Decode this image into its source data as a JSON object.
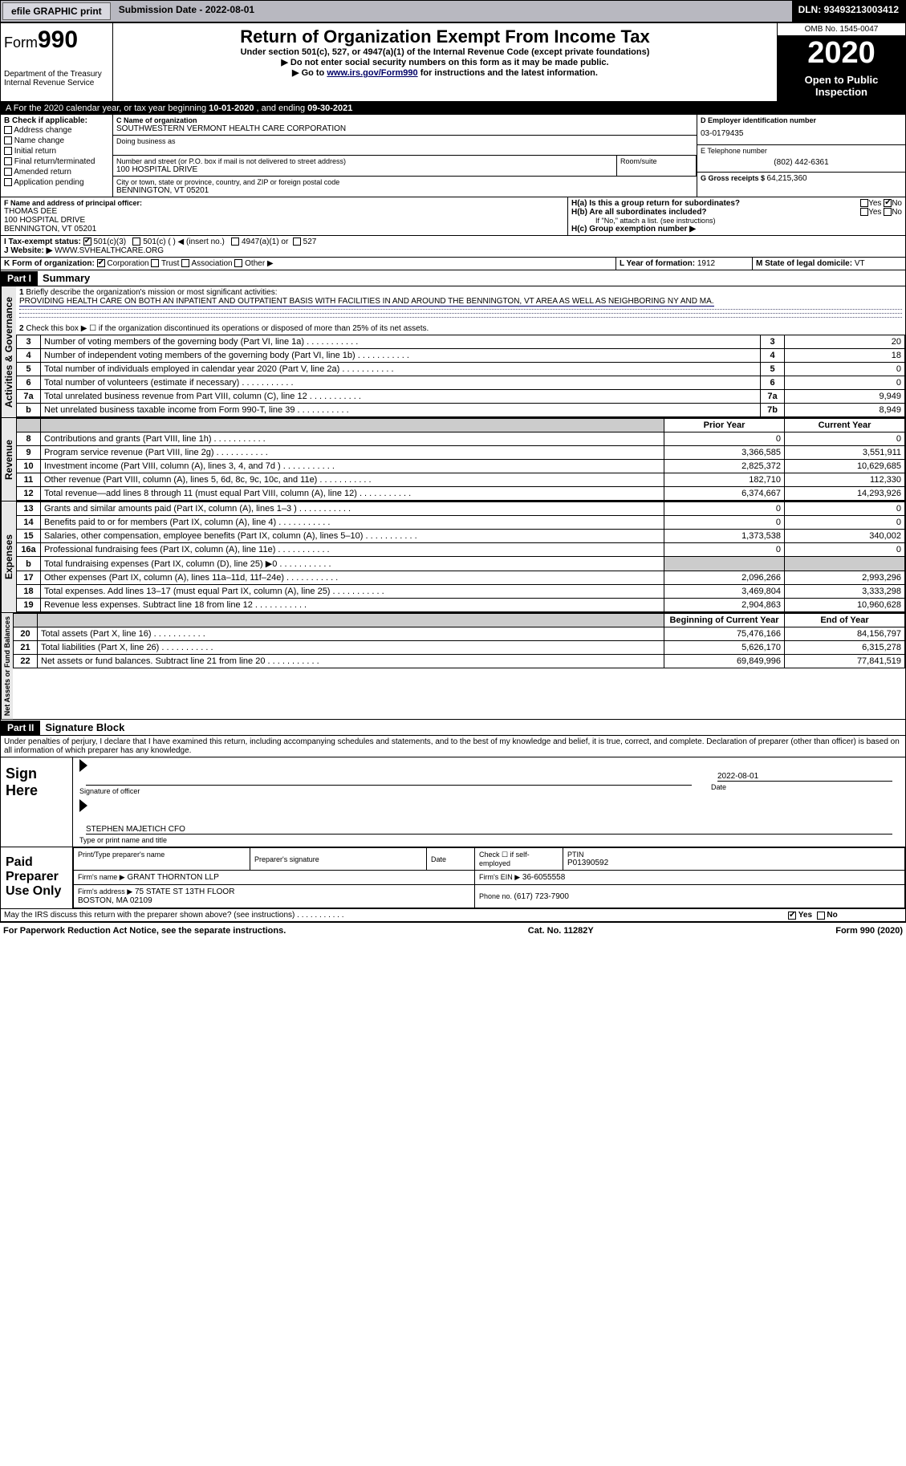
{
  "topbar": {
    "efile": "efile GRAPHIC print",
    "submission_label": "Submission Date - ",
    "submission_date": "2022-08-01",
    "dln_label": "DLN: ",
    "dln": "93493213003412"
  },
  "header": {
    "form_prefix": "Form",
    "form_no": "990",
    "dept": "Department of the Treasury\nInternal Revenue Service",
    "title": "Return of Organization Exempt From Income Tax",
    "subtitle": "Under section 501(c), 527, or 4947(a)(1) of the Internal Revenue Code (except private foundations)",
    "instr1": "▶ Do not enter social security numbers on this form as it may be made public.",
    "instr2_pre": "▶ Go to ",
    "instr2_link": "www.irs.gov/Form990",
    "instr2_post": " for instructions and the latest information.",
    "omb": "OMB No. 1545-0047",
    "year": "2020",
    "open": "Open to Public Inspection"
  },
  "lineA": {
    "pre": "For the 2020 calendar year, or tax year beginning ",
    "begin": "10-01-2020",
    "mid": " , and ending ",
    "end": "09-30-2021"
  },
  "secB": {
    "label": "B Check if applicable:",
    "opts": [
      "Address change",
      "Name change",
      "Initial return",
      "Final return/terminated",
      "Amended return",
      "Application pending"
    ]
  },
  "secC": {
    "name_label": "C Name of organization",
    "name": "SOUTHWESTERN VERMONT HEALTH CARE CORPORATION",
    "dba_label": "Doing business as",
    "addr_label": "Number and street (or P.O. box if mail is not delivered to street address)",
    "room_label": "Room/suite",
    "addr": "100 HOSPITAL DRIVE",
    "city_label": "City or town, state or province, country, and ZIP or foreign postal code",
    "city": "BENNINGTON, VT  05201"
  },
  "secD": {
    "label": "D Employer identification number",
    "ein": "03-0179435"
  },
  "secE": {
    "label": "E Telephone number",
    "phone": "(802) 442-6361"
  },
  "secG": {
    "label": "G Gross receipts $ ",
    "val": "64,215,360"
  },
  "secF": {
    "label": "F Name and address of principal officer:",
    "name": "THOMAS DEE",
    "addr1": "100 HOSPITAL DRIVE",
    "addr2": "BENNINGTON, VT  05201"
  },
  "secH": {
    "a": "H(a)  Is this a group return for subordinates?",
    "b": "H(b)  Are all subordinates included?",
    "b_note": "If \"No,\" attach a list. (see instructions)",
    "c": "H(c)  Group exemption number ▶",
    "yes": "Yes",
    "no": "No"
  },
  "secI": {
    "label": "I   Tax-exempt status:",
    "o1": "501(c)(3)",
    "o2": "501(c) (  ) ◀ (insert no.)",
    "o3": "4947(a)(1) or",
    "o4": "527"
  },
  "secJ": {
    "label": "J   Website: ▶",
    "val": "WWW.SVHEALTHCARE.ORG"
  },
  "secK": {
    "label": "K Form of organization:",
    "o1": "Corporation",
    "o2": "Trust",
    "o3": "Association",
    "o4": "Other ▶"
  },
  "secL": {
    "label": "L Year of formation: ",
    "val": "1912"
  },
  "secM": {
    "label": "M State of legal domicile: ",
    "val": "VT"
  },
  "part1": {
    "hdr": "Part I",
    "title": "Summary",
    "q1": "Briefly describe the organization's mission or most significant activities:",
    "q1_ans": "PROVIDING HEALTH CARE ON BOTH AN INPATIENT AND OUTPATIENT BASIS WITH FACILITIES IN AND AROUND THE BENNINGTON, VT AREA AS WELL AS NEIGHBORING NY AND MA.",
    "q2": "Check this box ▶ ☐ if the organization discontinued its operations or disposed of more than 25% of its net assets.",
    "prior_year": "Prior Year",
    "current_year": "Current Year",
    "bocy": "Beginning of Current Year",
    "eoy": "End of Year",
    "gov_label": "Activities & Governance",
    "rev_label": "Revenue",
    "exp_label": "Expenses",
    "net_label": "Net Assets or Fund Balances",
    "rows_top": [
      {
        "n": "3",
        "t": "Number of voting members of the governing body (Part VI, line 1a)",
        "r": "3",
        "v": "20"
      },
      {
        "n": "4",
        "t": "Number of independent voting members of the governing body (Part VI, line 1b)",
        "r": "4",
        "v": "18"
      },
      {
        "n": "5",
        "t": "Total number of individuals employed in calendar year 2020 (Part V, line 2a)",
        "r": "5",
        "v": "0"
      },
      {
        "n": "6",
        "t": "Total number of volunteers (estimate if necessary)",
        "r": "6",
        "v": "0"
      },
      {
        "n": "7a",
        "t": "Total unrelated business revenue from Part VIII, column (C), line 12",
        "r": "7a",
        "v": "9,949"
      },
      {
        "n": "b",
        "t": "Net unrelated business taxable income from Form 990-T, line 39",
        "r": "7b",
        "v": "8,949"
      }
    ],
    "rows_rev": [
      {
        "n": "8",
        "t": "Contributions and grants (Part VIII, line 1h)",
        "p": "0",
        "c": "0"
      },
      {
        "n": "9",
        "t": "Program service revenue (Part VIII, line 2g)",
        "p": "3,366,585",
        "c": "3,551,911"
      },
      {
        "n": "10",
        "t": "Investment income (Part VIII, column (A), lines 3, 4, and 7d )",
        "p": "2,825,372",
        "c": "10,629,685"
      },
      {
        "n": "11",
        "t": "Other revenue (Part VIII, column (A), lines 5, 6d, 8c, 9c, 10c, and 11e)",
        "p": "182,710",
        "c": "112,330"
      },
      {
        "n": "12",
        "t": "Total revenue—add lines 8 through 11 (must equal Part VIII, column (A), line 12)",
        "p": "6,374,667",
        "c": "14,293,926"
      }
    ],
    "rows_exp": [
      {
        "n": "13",
        "t": "Grants and similar amounts paid (Part IX, column (A), lines 1–3 )",
        "p": "0",
        "c": "0"
      },
      {
        "n": "14",
        "t": "Benefits paid to or for members (Part IX, column (A), line 4)",
        "p": "0",
        "c": "0"
      },
      {
        "n": "15",
        "t": "Salaries, other compensation, employee benefits (Part IX, column (A), lines 5–10)",
        "p": "1,373,538",
        "c": "340,002"
      },
      {
        "n": "16a",
        "t": "Professional fundraising fees (Part IX, column (A), line 11e)",
        "p": "0",
        "c": "0"
      },
      {
        "n": "b",
        "t": "Total fundraising expenses (Part IX, column (D), line 25) ▶0",
        "p": "",
        "c": "",
        "shaded": true
      },
      {
        "n": "17",
        "t": "Other expenses (Part IX, column (A), lines 11a–11d, 11f–24e)",
        "p": "2,096,266",
        "c": "2,993,296"
      },
      {
        "n": "18",
        "t": "Total expenses. Add lines 13–17 (must equal Part IX, column (A), line 25)",
        "p": "3,469,804",
        "c": "3,333,298"
      },
      {
        "n": "19",
        "t": "Revenue less expenses. Subtract line 18 from line 12",
        "p": "2,904,863",
        "c": "10,960,628"
      }
    ],
    "rows_net": [
      {
        "n": "20",
        "t": "Total assets (Part X, line 16)",
        "p": "75,476,166",
        "c": "84,156,797"
      },
      {
        "n": "21",
        "t": "Total liabilities (Part X, line 26)",
        "p": "5,626,170",
        "c": "6,315,278"
      },
      {
        "n": "22",
        "t": "Net assets or fund balances. Subtract line 21 from line 20",
        "p": "69,849,996",
        "c": "77,841,519"
      }
    ]
  },
  "part2": {
    "hdr": "Part II",
    "title": "Signature Block",
    "decl": "Under penalties of perjury, I declare that I have examined this return, including accompanying schedules and statements, and to the best of my knowledge and belief, it is true, correct, and complete. Declaration of preparer (other than officer) is based on all information of which preparer has any knowledge.",
    "sign_here": "Sign Here",
    "sig_officer": "Signature of officer",
    "sig_date": "2022-08-01",
    "date_label": "Date",
    "officer_name": "STEPHEN MAJETICH  CFO",
    "type_name": "Type or print name and title",
    "paid_prep": "Paid Preparer Use Only",
    "prep_name_label": "Print/Type preparer's name",
    "prep_sig_label": "Preparer's signature",
    "prep_date_label": "Date",
    "check_if": "Check ☐ if self-employed",
    "ptin_label": "PTIN",
    "ptin": "P01390592",
    "firm_name_label": "Firm's name    ▶",
    "firm_name": "GRANT THORNTON LLP",
    "firm_ein_label": "Firm's EIN ▶",
    "firm_ein": "36-6055558",
    "firm_addr_label": "Firm's address ▶",
    "firm_addr": "75 STATE ST 13TH FLOOR\nBOSTON, MA  02109",
    "phone_label": "Phone no. ",
    "phone": "(617) 723-7900",
    "irs_q": "May the IRS discuss this return with the preparer shown above? (see instructions)",
    "yes": "Yes",
    "no": "No"
  },
  "footer": {
    "pra": "For Paperwork Reduction Act Notice, see the separate instructions.",
    "cat": "Cat. No. 11282Y",
    "form": "Form 990 (2020)"
  }
}
